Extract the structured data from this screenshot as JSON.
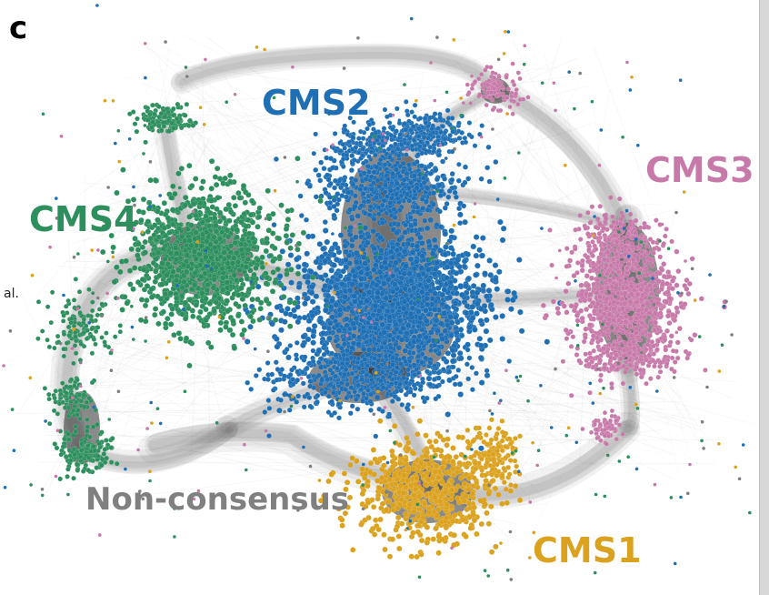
{
  "panel_label": "c",
  "side_fragment": "al.",
  "clusters": [
    {
      "id": "cms2",
      "label": "CMS2",
      "color": "#1f6fb4"
    },
    {
      "id": "cms3",
      "label": "CMS3",
      "color": "#c77aa9"
    },
    {
      "id": "cms4",
      "label": "CMS4",
      "color": "#2e8f5e"
    },
    {
      "id": "non",
      "label": "Non-consensus",
      "color": "#808080"
    },
    {
      "id": "cms1",
      "label": "CMS1",
      "color": "#dba21f"
    }
  ]
}
